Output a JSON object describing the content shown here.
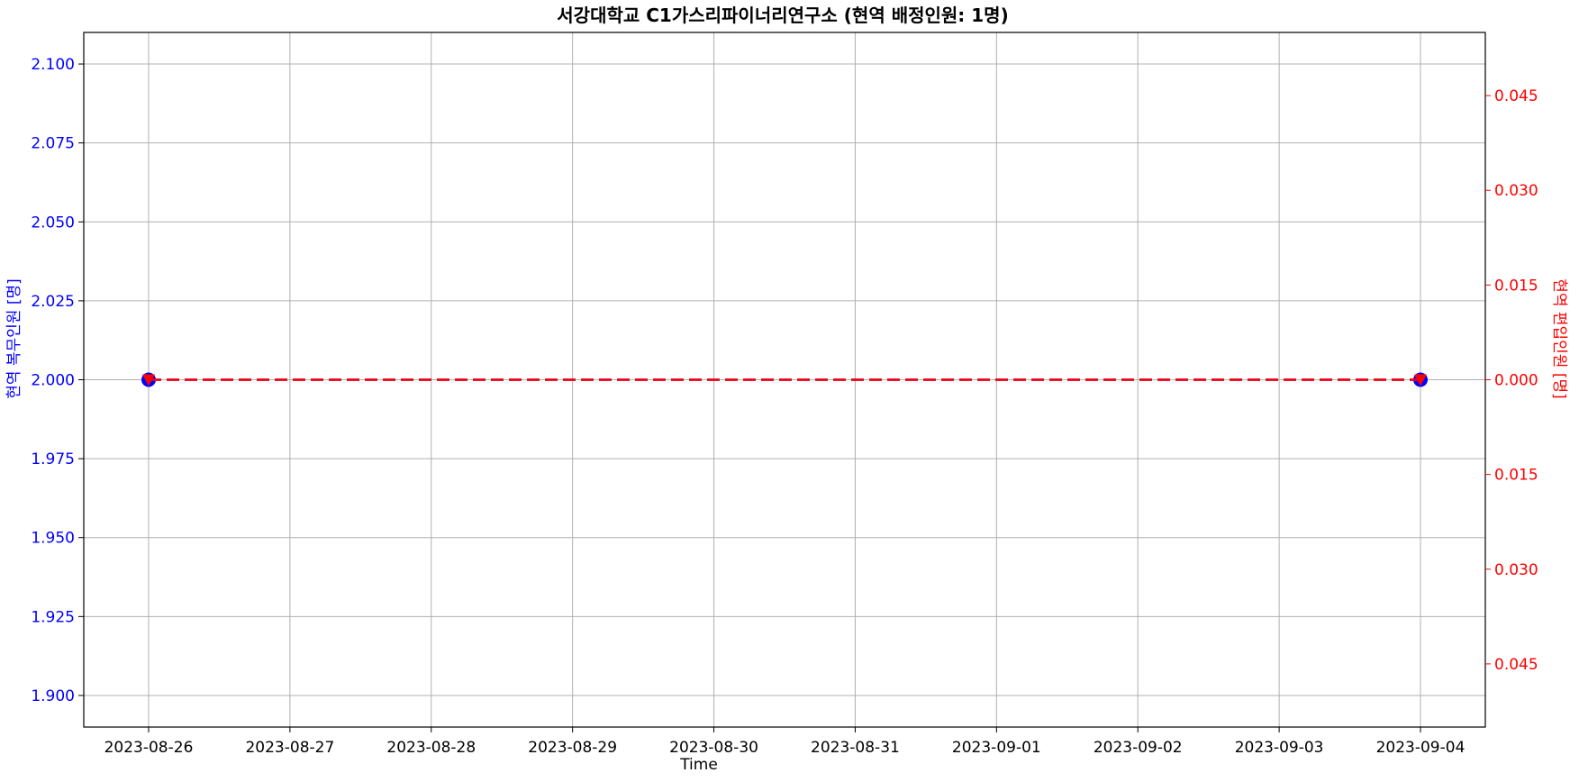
{
  "chart_data": {
    "type": "line",
    "title": "서강대학교 C1가스리파이너리연구소 (현역 배정인원: 1명)",
    "xlabel": "Time",
    "ylabel_left": "현역 복무인원 [명]",
    "ylabel_right": "현역 편입인원 [명]",
    "x_ticks": [
      "2023-08-26",
      "2023-08-27",
      "2023-08-28",
      "2023-08-29",
      "2023-08-30",
      "2023-08-31",
      "2023-09-01",
      "2023-09-02",
      "2023-09-03",
      "2023-09-04"
    ],
    "y_left_ticks": [
      "1.900",
      "1.925",
      "1.950",
      "1.975",
      "2.000",
      "2.025",
      "2.050",
      "2.075",
      "2.100"
    ],
    "y_left_tick_values": [
      1.9,
      1.925,
      1.95,
      1.975,
      2.0,
      2.025,
      2.05,
      2.075,
      2.1
    ],
    "y_right_ticks": [
      "0.045",
      "0.030",
      "0.015",
      "0.000",
      "0.015",
      "0.030",
      "0.045"
    ],
    "y_right_tick_values": [
      -0.045,
      -0.03,
      -0.015,
      0.0,
      0.015,
      0.03,
      0.045
    ],
    "ylim_left": [
      1.89,
      2.11
    ],
    "ylim_right": [
      -0.055,
      0.055
    ],
    "grid": true,
    "series": [
      {
        "axis": "left",
        "color": "#0000ff",
        "marker": "circle",
        "linestyle": "dashed",
        "x": [
          "2023-08-26",
          "2023-09-04"
        ],
        "values": [
          2.0,
          2.0
        ]
      },
      {
        "axis": "right",
        "color": "#ff0000",
        "marker": "triangle-down",
        "linestyle": "dashed",
        "x": [
          "2023-08-26",
          "2023-09-04"
        ],
        "values": [
          0.0,
          0.0
        ]
      }
    ]
  }
}
